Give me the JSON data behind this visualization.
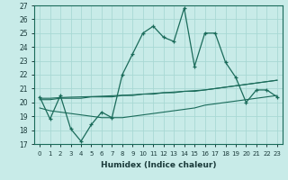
{
  "xlabel": "Humidex (Indice chaleur)",
  "bg_color": "#c8ebe8",
  "grid_color": "#a8d8d4",
  "line_color": "#1a6b5a",
  "xlim": [
    -0.5,
    23.5
  ],
  "ylim": [
    17,
    27
  ],
  "xticks": [
    0,
    1,
    2,
    3,
    4,
    5,
    6,
    7,
    8,
    9,
    10,
    11,
    12,
    13,
    14,
    15,
    16,
    17,
    18,
    19,
    20,
    21,
    22,
    23
  ],
  "yticks": [
    17,
    18,
    19,
    20,
    21,
    22,
    23,
    24,
    25,
    26,
    27
  ],
  "line1_x": [
    0,
    1,
    2,
    3,
    4,
    5,
    6,
    7,
    8,
    9,
    10,
    11,
    12,
    13,
    14,
    15,
    16,
    17,
    18,
    19,
    20,
    21,
    22,
    23
  ],
  "line1_y": [
    20.4,
    18.8,
    20.5,
    18.1,
    17.2,
    18.4,
    19.3,
    18.9,
    22.0,
    23.5,
    25.0,
    25.5,
    24.7,
    24.4,
    26.8,
    22.6,
    25.0,
    25.0,
    22.9,
    21.8,
    20.0,
    20.9,
    20.9,
    20.4
  ],
  "line2_x": [
    0,
    1,
    2,
    3,
    4,
    5,
    6,
    7,
    8,
    9,
    10,
    11,
    12,
    13,
    14,
    15,
    16,
    17,
    18,
    19,
    20,
    21,
    22,
    23
  ],
  "line2_y": [
    20.2,
    20.2,
    20.3,
    20.3,
    20.3,
    20.4,
    20.4,
    20.4,
    20.5,
    20.5,
    20.6,
    20.6,
    20.7,
    20.7,
    20.8,
    20.8,
    20.9,
    21.0,
    21.1,
    21.2,
    21.3,
    21.4,
    21.5,
    21.6
  ],
  "line3_x": [
    0,
    1,
    2,
    3,
    4,
    5,
    6,
    7,
    8,
    9,
    10,
    11,
    12,
    13,
    14,
    15,
    16,
    17,
    18,
    19,
    20,
    21,
    22,
    23
  ],
  "line3_y": [
    20.3,
    20.3,
    20.35,
    20.38,
    20.4,
    20.42,
    20.45,
    20.48,
    20.52,
    20.55,
    20.6,
    20.65,
    20.7,
    20.75,
    20.8,
    20.85,
    20.9,
    21.0,
    21.1,
    21.2,
    21.3,
    21.4,
    21.5,
    21.6
  ],
  "line4_x": [
    0,
    1,
    2,
    3,
    4,
    5,
    6,
    7,
    8,
    9,
    10,
    11,
    12,
    13,
    14,
    15,
    16,
    17,
    18,
    19,
    20,
    21,
    22,
    23
  ],
  "line4_y": [
    19.6,
    19.4,
    19.3,
    19.2,
    19.1,
    19.0,
    18.9,
    18.9,
    18.9,
    19.0,
    19.1,
    19.2,
    19.3,
    19.4,
    19.5,
    19.6,
    19.8,
    19.9,
    20.0,
    20.1,
    20.2,
    20.3,
    20.4,
    20.5
  ],
  "xtick_labels": [
    "0",
    "1",
    "2",
    "3",
    "4",
    "5",
    "6",
    "7",
    "8",
    "9",
    "10",
    "11",
    "12",
    "13",
    "14",
    "15",
    "16",
    "17",
    "18",
    "19",
    "20",
    "21",
    "22",
    "23"
  ]
}
